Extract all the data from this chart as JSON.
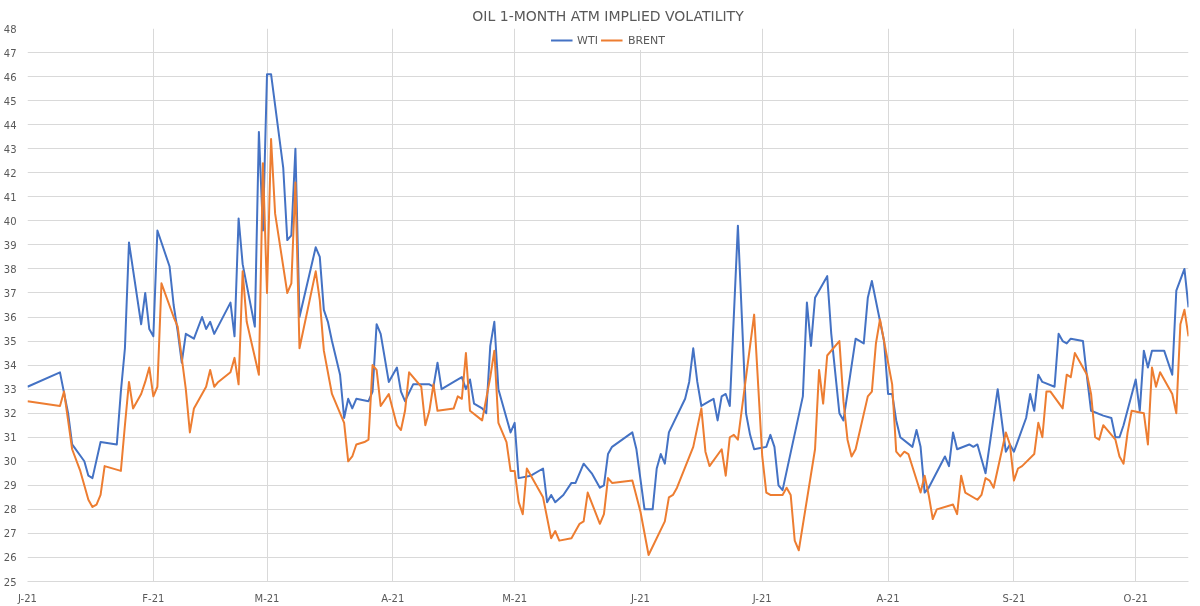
{
  "chart_data": {
    "type": "line",
    "title": "OIL 1-MONTH ATM IMPLIED VOLATILITY",
    "legend": "top",
    "grid": true,
    "line_style": "solid",
    "xlim": [
      "2021-01-01",
      "2021-10-14"
    ],
    "xticks": [
      {
        "value": "2021-01-01",
        "label": "J-21"
      },
      {
        "value": "2021-02-01",
        "label": "F-21"
      },
      {
        "value": "2021-03-01",
        "label": "M-21"
      },
      {
        "value": "2021-04-01",
        "label": "A-21"
      },
      {
        "value": "2021-05-01",
        "label": "M-21"
      },
      {
        "value": "2021-06-01",
        "label": "J-21"
      },
      {
        "value": "2021-07-01",
        "label": "J-21"
      },
      {
        "value": "2021-08-01",
        "label": "A-21"
      },
      {
        "value": "2021-09-01",
        "label": "S-21"
      },
      {
        "value": "2021-10-01",
        "label": "O-21"
      }
    ],
    "ylim": [
      25,
      48
    ],
    "yticks": [
      25,
      26,
      27,
      28,
      29,
      30,
      31,
      32,
      33,
      34,
      35,
      36,
      37,
      38,
      39,
      40,
      41,
      42,
      43,
      44,
      45,
      46,
      47,
      48
    ],
    "series": [
      {
        "name": "WTI",
        "color": "#4472c4",
        "x": [
          "2021-01-01",
          "2021-01-09",
          "2021-01-11",
          "2021-01-12",
          "2021-01-15",
          "2021-01-16",
          "2021-01-17",
          "2021-01-19",
          "2021-01-23",
          "2021-01-24",
          "2021-01-25",
          "2021-01-26",
          "2021-01-29",
          "2021-01-30",
          "2021-01-31",
          "2021-02-01",
          "2021-02-02",
          "2021-02-05",
          "2021-02-06",
          "2021-02-07",
          "2021-02-08",
          "2021-02-09",
          "2021-02-11",
          "2021-02-13",
          "2021-02-14",
          "2021-02-15",
          "2021-02-16",
          "2021-02-20",
          "2021-02-21",
          "2021-02-22",
          "2021-02-23",
          "2021-02-26",
          "2021-02-27",
          "2021-02-28",
          "2021-03-01",
          "2021-03-02",
          "2021-03-05",
          "2021-03-06",
          "2021-03-07",
          "2021-03-08",
          "2021-03-09",
          "2021-03-13",
          "2021-03-14",
          "2021-03-15",
          "2021-03-16",
          "2021-03-17",
          "2021-03-19",
          "2021-03-20",
          "2021-03-21",
          "2021-03-22",
          "2021-03-23",
          "2021-03-26",
          "2021-03-27",
          "2021-03-28",
          "2021-03-29",
          "2021-03-31",
          "2021-04-02",
          "2021-04-03",
          "2021-04-04",
          "2021-04-06",
          "2021-04-10",
          "2021-04-11",
          "2021-04-12",
          "2021-04-13",
          "2021-04-16",
          "2021-04-18",
          "2021-04-19",
          "2021-04-20",
          "2021-04-21",
          "2021-04-23",
          "2021-04-24",
          "2021-04-25",
          "2021-04-26",
          "2021-04-27",
          "2021-04-30",
          "2021-05-01",
          "2021-05-02",
          "2021-05-05",
          "2021-05-08",
          "2021-05-09",
          "2021-05-10",
          "2021-05-11",
          "2021-05-13",
          "2021-05-15",
          "2021-05-16",
          "2021-05-18",
          "2021-05-20",
          "2021-05-22",
          "2021-05-23",
          "2021-05-24",
          "2021-05-25",
          "2021-05-30",
          "2021-05-31",
          "2021-06-02",
          "2021-06-04",
          "2021-06-05",
          "2021-06-06",
          "2021-06-07",
          "2021-06-08",
          "2021-06-12",
          "2021-06-13",
          "2021-06-14",
          "2021-06-15",
          "2021-06-16",
          "2021-06-18",
          "2021-06-19",
          "2021-06-20",
          "2021-06-21",
          "2021-06-22",
          "2021-06-23",
          "2021-06-25",
          "2021-06-27",
          "2021-06-28",
          "2021-06-29",
          "2021-07-02",
          "2021-07-03",
          "2021-07-04",
          "2021-07-05",
          "2021-07-06",
          "2021-07-11",
          "2021-07-12",
          "2021-07-13",
          "2021-07-14",
          "2021-07-17",
          "2021-07-18",
          "2021-07-20",
          "2021-07-21",
          "2021-07-24",
          "2021-07-26",
          "2021-07-27",
          "2021-07-28",
          "2021-07-31",
          "2021-08-01",
          "2021-08-02",
          "2021-08-03",
          "2021-08-04",
          "2021-08-07",
          "2021-08-08",
          "2021-08-09",
          "2021-08-10",
          "2021-08-11",
          "2021-08-15",
          "2021-08-16",
          "2021-08-17",
          "2021-08-18",
          "2021-08-21",
          "2021-08-22",
          "2021-08-23",
          "2021-08-25",
          "2021-08-28",
          "2021-08-30",
          "2021-08-31",
          "2021-09-01",
          "2021-09-04",
          "2021-09-05",
          "2021-09-06",
          "2021-09-07",
          "2021-09-08",
          "2021-09-11",
          "2021-09-12",
          "2021-09-13",
          "2021-09-14",
          "2021-09-15",
          "2021-09-18",
          "2021-09-19",
          "2021-09-20",
          "2021-09-23",
          "2021-09-25",
          "2021-09-26",
          "2021-09-27",
          "2021-09-28",
          "2021-10-01",
          "2021-10-02",
          "2021-10-03",
          "2021-10-04",
          "2021-10-05",
          "2021-10-08",
          "2021-10-10",
          "2021-10-11",
          "2021-10-13",
          "2021-10-14"
        ],
        "values": [
          33.1,
          33.7,
          32.0,
          30.7,
          30.0,
          29.4,
          29.3,
          30.8,
          30.7,
          32.9,
          34.7,
          39.1,
          35.7,
          37.0,
          35.5,
          35.2,
          39.6,
          38.1,
          36.5,
          35.4,
          34.1,
          35.3,
          35.1,
          36.0,
          35.5,
          35.8,
          35.3,
          36.6,
          35.2,
          40.1,
          38.2,
          35.6,
          43.7,
          39.6,
          46.1,
          46.1,
          42.2,
          39.2,
          39.4,
          43.0,
          36.0,
          38.9,
          38.5,
          36.3,
          35.8,
          35.0,
          33.6,
          31.8,
          32.6,
          32.2,
          32.6,
          32.5,
          32.9,
          35.7,
          35.3,
          33.3,
          33.9,
          32.9,
          32.5,
          33.2,
          33.2,
          33.1,
          34.1,
          33.0,
          33.3,
          33.5,
          33.0,
          33.4,
          32.4,
          32.2,
          32.0,
          34.8,
          35.8,
          33.0,
          31.2,
          31.6,
          29.3,
          29.4,
          29.7,
          28.3,
          28.6,
          28.3,
          28.6,
          29.1,
          29.1,
          29.9,
          29.5,
          28.9,
          29.0,
          30.3,
          30.6,
          31.2,
          30.5,
          28.0,
          28.0,
          29.7,
          30.3,
          29.9,
          31.2,
          32.6,
          33.3,
          34.7,
          33.3,
          32.3,
          32.5,
          32.6,
          31.7,
          32.7,
          32.8,
          32.3,
          39.8,
          32.0,
          31.1,
          30.5,
          30.6,
          31.1,
          30.6,
          29.0,
          28.8,
          32.7,
          36.6,
          34.8,
          36.8,
          37.7,
          35.3,
          32.0,
          31.7,
          35.1,
          34.9,
          36.8,
          37.5,
          35.0,
          32.8,
          32.8,
          31.7,
          31.0,
          30.6,
          31.3,
          30.6,
          28.7,
          28.9,
          30.2,
          29.8,
          31.2,
          30.5,
          30.7,
          30.6,
          30.7,
          29.5,
          33.0,
          30.4,
          30.7,
          30.4,
          31.8,
          32.8,
          32.1,
          33.6,
          33.3,
          33.1,
          35.3,
          35.0,
          34.9,
          35.1,
          35.0,
          33.5,
          32.1,
          31.9,
          31.8,
          31.0,
          31.0,
          31.5,
          33.4,
          32.1,
          34.6,
          33.9,
          34.6,
          34.6,
          33.6,
          37.1,
          38.0,
          36.4
        ]
      },
      {
        "name": "BRENT",
        "color": "#ed7d31",
        "x": [
          "2021-01-01",
          "2021-01-09",
          "2021-01-10",
          "2021-01-11",
          "2021-01-12",
          "2021-01-14",
          "2021-01-16",
          "2021-01-17",
          "2021-01-18",
          "2021-01-19",
          "2021-01-20",
          "2021-01-24",
          "2021-01-25",
          "2021-01-26",
          "2021-01-27",
          "2021-01-29",
          "2021-01-30",
          "2021-01-31",
          "2021-02-01",
          "2021-02-02",
          "2021-02-03",
          "2021-02-06",
          "2021-02-07",
          "2021-02-09",
          "2021-02-10",
          "2021-02-11",
          "2021-02-14",
          "2021-02-15",
          "2021-02-16",
          "2021-02-17",
          "2021-02-20",
          "2021-02-21",
          "2021-02-22",
          "2021-02-23",
          "2021-02-24",
          "2021-02-27",
          "2021-02-28",
          "2021-03-01",
          "2021-03-02",
          "2021-03-03",
          "2021-03-06",
          "2021-03-07",
          "2021-03-08",
          "2021-03-09",
          "2021-03-13",
          "2021-03-14",
          "2021-03-15",
          "2021-03-17",
          "2021-03-20",
          "2021-03-21",
          "2021-03-22",
          "2021-03-23",
          "2021-03-25",
          "2021-03-26",
          "2021-03-27",
          "2021-03-28",
          "2021-03-29",
          "2021-03-31",
          "2021-04-02",
          "2021-04-03",
          "2021-04-04",
          "2021-04-05",
          "2021-04-08",
          "2021-04-09",
          "2021-04-10",
          "2021-04-11",
          "2021-04-12",
          "2021-04-16",
          "2021-04-17",
          "2021-04-18",
          "2021-04-19",
          "2021-04-20",
          "2021-04-23",
          "2021-04-25",
          "2021-04-26",
          "2021-04-27",
          "2021-04-29",
          "2021-04-30",
          "2021-05-01",
          "2021-05-02",
          "2021-05-03",
          "2021-05-04",
          "2021-05-08",
          "2021-05-10",
          "2021-05-11",
          "2021-05-12",
          "2021-05-15",
          "2021-05-16",
          "2021-05-17",
          "2021-05-18",
          "2021-05-19",
          "2021-05-22",
          "2021-05-23",
          "2021-05-24",
          "2021-05-25",
          "2021-05-30",
          "2021-06-01",
          "2021-06-03",
          "2021-06-07",
          "2021-06-08",
          "2021-06-09",
          "2021-06-10",
          "2021-06-14",
          "2021-06-16",
          "2021-06-17",
          "2021-06-18",
          "2021-06-21",
          "2021-06-22",
          "2021-06-23",
          "2021-06-24",
          "2021-06-25",
          "2021-06-29",
          "2021-07-01",
          "2021-07-02",
          "2021-07-03",
          "2021-07-06",
          "2021-07-07",
          "2021-07-08",
          "2021-07-09",
          "2021-07-10",
          "2021-07-14",
          "2021-07-15",
          "2021-07-16",
          "2021-07-17",
          "2021-07-20",
          "2021-07-21",
          "2021-07-22",
          "2021-07-23",
          "2021-07-24",
          "2021-07-27",
          "2021-07-28",
          "2021-07-29",
          "2021-07-30",
          "2021-08-02",
          "2021-08-03",
          "2021-08-04",
          "2021-08-05",
          "2021-08-06",
          "2021-08-09",
          "2021-08-10",
          "2021-08-11",
          "2021-08-12",
          "2021-08-13",
          "2021-08-17",
          "2021-08-18",
          "2021-08-19",
          "2021-08-20",
          "2021-08-23",
          "2021-08-24",
          "2021-08-25",
          "2021-08-26",
          "2021-08-27",
          "2021-08-30",
          "2021-08-31",
          "2021-09-01",
          "2021-09-02",
          "2021-09-03",
          "2021-09-06",
          "2021-09-07",
          "2021-09-08",
          "2021-09-09",
          "2021-09-10",
          "2021-09-13",
          "2021-09-14",
          "2021-09-15",
          "2021-09-16",
          "2021-09-19",
          "2021-09-20",
          "2021-09-21",
          "2021-09-22",
          "2021-09-23",
          "2021-09-26",
          "2021-09-27",
          "2021-09-28",
          "2021-09-29",
          "2021-09-30",
          "2021-10-03",
          "2021-10-04",
          "2021-10-05",
          "2021-10-06",
          "2021-10-07",
          "2021-10-10",
          "2021-10-11",
          "2021-10-12",
          "2021-10-13",
          "2021-10-14"
        ],
        "values": [
          32.5,
          32.3,
          32.9,
          31.7,
          30.5,
          29.6,
          28.4,
          28.1,
          28.2,
          28.6,
          29.8,
          29.6,
          31.5,
          33.3,
          32.2,
          32.8,
          33.3,
          33.9,
          32.7,
          33.1,
          37.4,
          36.0,
          35.6,
          33.0,
          31.2,
          32.2,
          33.1,
          33.8,
          33.1,
          33.3,
          33.7,
          34.3,
          33.2,
          37.9,
          35.8,
          33.6,
          42.4,
          37.0,
          43.4,
          40.3,
          37.0,
          37.4,
          41.6,
          34.7,
          37.9,
          36.7,
          34.6,
          32.8,
          31.6,
          30.0,
          30.2,
          30.7,
          30.8,
          30.9,
          34.0,
          33.8,
          32.3,
          32.8,
          31.5,
          31.3,
          32.1,
          33.7,
          33.1,
          31.5,
          32.1,
          33.2,
          32.1,
          32.2,
          32.7,
          32.6,
          34.5,
          32.1,
          31.7,
          33.5,
          34.6,
          31.6,
          30.8,
          29.6,
          29.6,
          28.3,
          27.8,
          29.7,
          28.5,
          26.8,
          27.1,
          26.7,
          26.8,
          27.1,
          27.4,
          27.5,
          28.7,
          27.4,
          27.8,
          29.3,
          29.1,
          29.2,
          27.9,
          26.1,
          27.5,
          28.5,
          28.6,
          28.9,
          30.6,
          32.2,
          30.4,
          29.8,
          30.5,
          29.4,
          31.0,
          31.1,
          30.9,
          36.1,
          30.2,
          28.7,
          28.6,
          28.6,
          28.9,
          28.6,
          26.7,
          26.3,
          30.5,
          33.8,
          32.4,
          34.4,
          35.0,
          32.5,
          30.9,
          30.2,
          30.5,
          32.7,
          32.9,
          34.9,
          35.9,
          33.2,
          30.4,
          30.2,
          30.4,
          30.3,
          28.7,
          29.4,
          28.6,
          27.6,
          28.0,
          28.2,
          27.8,
          29.4,
          28.7,
          28.4,
          28.6,
          29.3,
          29.2,
          28.9,
          31.2,
          30.7,
          29.2,
          29.7,
          29.8,
          30.3,
          31.6,
          31.0,
          32.9,
          32.9,
          32.2,
          33.6,
          33.5,
          34.5,
          33.6,
          32.8,
          31.0,
          30.9,
          31.5,
          30.9,
          30.2,
          29.9,
          31.2,
          32.1,
          32.0,
          30.7,
          33.9,
          33.1,
          33.7,
          32.8,
          32.0,
          35.7,
          36.3,
          35.2
        ]
      }
    ]
  }
}
